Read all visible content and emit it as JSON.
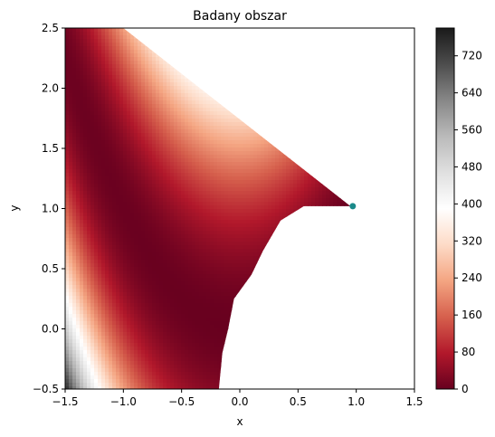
{
  "chart_data": {
    "type": "heatmap",
    "title": "Badany obszar",
    "xlabel": "x",
    "ylabel": "y",
    "xlim": [
      -1.5,
      1.5
    ],
    "ylim": [
      -0.5,
      2.5
    ],
    "xticks": [
      -1.5,
      -1.0,
      -0.5,
      0.0,
      0.5,
      1.0,
      1.5
    ],
    "xtick_labels": [
      "−1.5",
      "−1.0",
      "−0.5",
      "0.0",
      "0.5",
      "1.0",
      "1.5"
    ],
    "yticks": [
      -0.5,
      0.0,
      0.5,
      1.0,
      1.5,
      2.0,
      2.5
    ],
    "ytick_labels": [
      "−0.5",
      "0.0",
      "0.5",
      "1.0",
      "1.5",
      "2.0",
      "2.5"
    ],
    "function": "rosenbrock",
    "colormap": "RdGy",
    "colorbar": {
      "range": [
        0,
        780
      ],
      "ticks": [
        0,
        80,
        160,
        240,
        320,
        400,
        480,
        560,
        640,
        720
      ],
      "tick_labels": [
        "0",
        "80",
        "160",
        "240",
        "320",
        "400",
        "480",
        "560",
        "640",
        "720"
      ]
    },
    "region_boundary": {
      "upper_edge": [
        [
          -1.0,
          2.5
        ],
        [
          0.95,
          1.02
        ]
      ],
      "lower_edge": [
        [
          0.95,
          1.02
        ],
        [
          0.55,
          1.02
        ],
        [
          0.35,
          0.9
        ],
        [
          0.2,
          0.65
        ],
        [
          0.1,
          0.45
        ],
        [
          -0.05,
          0.25
        ],
        [
          -0.1,
          0.0
        ],
        [
          -0.15,
          -0.2
        ],
        [
          -0.18,
          -0.5
        ]
      ]
    },
    "point": {
      "x": 0.97,
      "y": 1.02,
      "color": "#1a8a8a"
    },
    "grid": false
  }
}
